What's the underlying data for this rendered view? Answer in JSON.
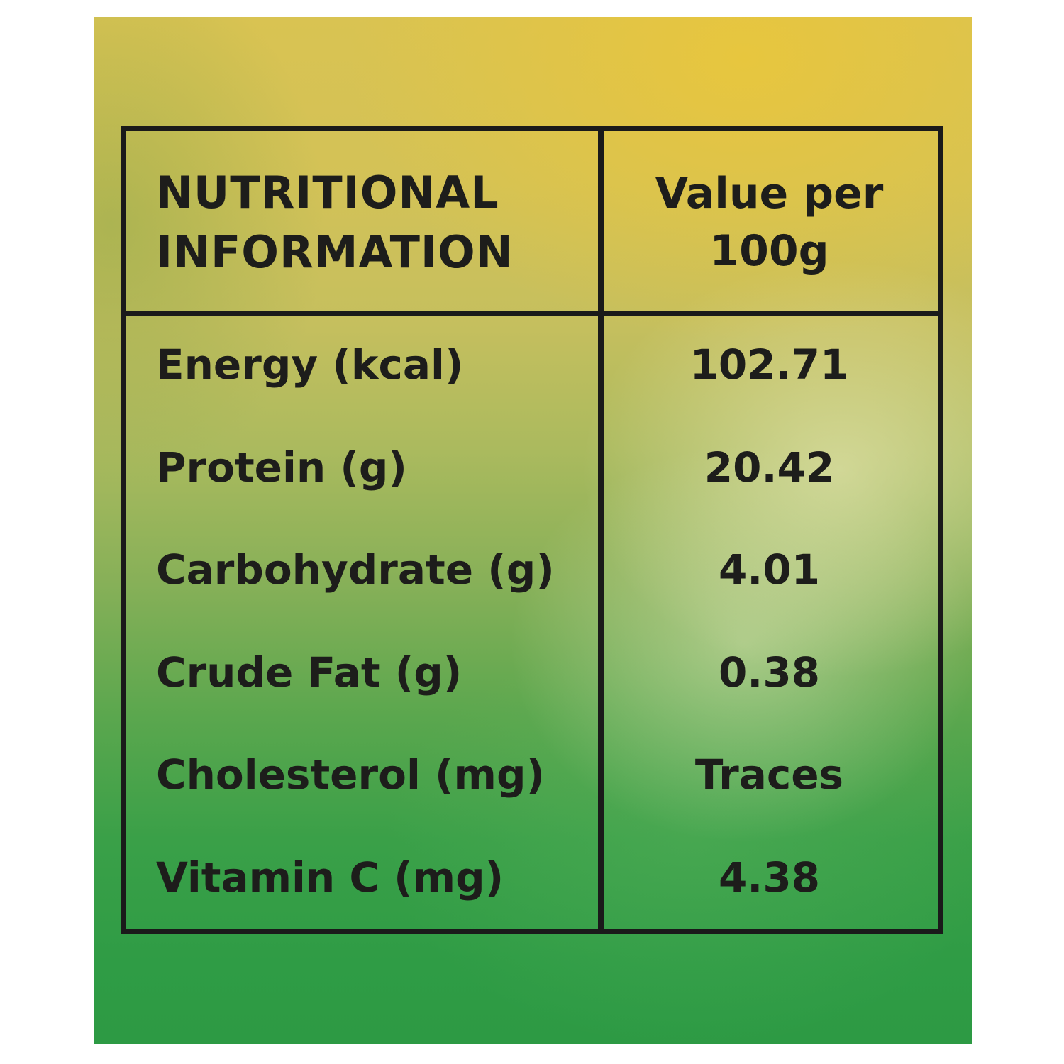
{
  "table": {
    "header": {
      "name_column": "NUTRITIONAL INFORMATION",
      "value_column": "Value per 100g"
    },
    "rows": [
      {
        "label": "Energy (kcal)",
        "value": "102.71"
      },
      {
        "label": "Protein (g)",
        "value": "20.42"
      },
      {
        "label": "Carbohydrate (g)",
        "value": "4.01"
      },
      {
        "label": "Crude Fat (g)",
        "value": "0.38"
      },
      {
        "label": "Cholesterol (mg)",
        "value": "Traces"
      },
      {
        "label": "Vitamin C (mg)",
        "value": "4.38"
      }
    ]
  },
  "colors": {
    "background_top_yellow": "#e7c64a",
    "background_bottom_green": "#2f9c45",
    "table_border": "#1a1a1a",
    "text": "#1d1d1b",
    "page_margin": "#ffffff"
  }
}
